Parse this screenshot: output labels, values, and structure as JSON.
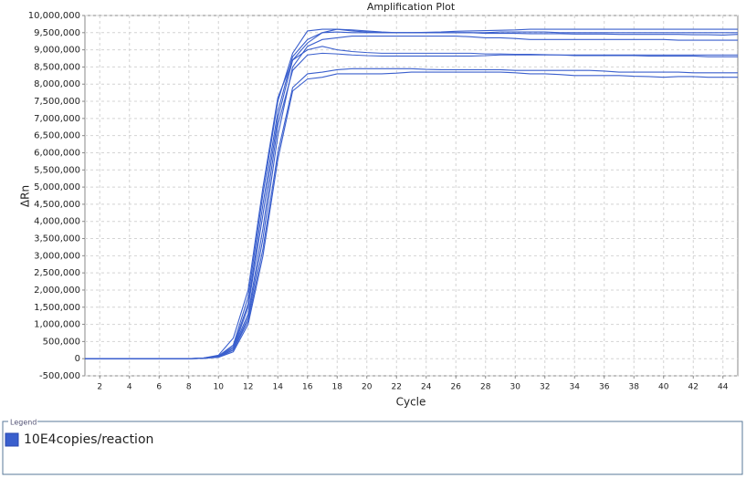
{
  "chart_data": {
    "type": "line",
    "title": "Amplification Plot",
    "x_label": "Cycle",
    "y_label": "ΔRn",
    "legend_title": "Legend",
    "legend": "10E4copies/reaction",
    "color": "#3a5fcd",
    "grid": true,
    "x": [
      1,
      2,
      3,
      4,
      5,
      6,
      7,
      8,
      9,
      10,
      11,
      12,
      13,
      14,
      15,
      16,
      17,
      18,
      19,
      20,
      21,
      22,
      23,
      24,
      25,
      26,
      27,
      28,
      29,
      30,
      31,
      32,
      33,
      34,
      35,
      36,
      37,
      38,
      39,
      40,
      41,
      42,
      43,
      44,
      45
    ],
    "xlim": [
      1,
      45
    ],
    "xticks": [
      2,
      4,
      6,
      8,
      10,
      12,
      14,
      16,
      18,
      20,
      22,
      24,
      26,
      28,
      30,
      32,
      34,
      36,
      38,
      40,
      42,
      44
    ],
    "ylim": [
      -500000,
      10000000
    ],
    "yticks": [
      {
        "value": -500000,
        "label": "-500,000"
      },
      0,
      {
        "value": 500000,
        "label": "500,000"
      },
      {
        "value": 1000000,
        "label": "1,000,000"
      },
      {
        "value": 1500000,
        "label": "1,500,000"
      },
      {
        "value": 2000000,
        "label": "2,000,000"
      },
      {
        "value": 2500000,
        "label": "2,500,000"
      },
      {
        "value": 3000000,
        "label": "3,000,000"
      },
      {
        "value": 3500000,
        "label": "3,500,000"
      },
      {
        "value": 4000000,
        "label": "4,000,000"
      },
      {
        "value": 4500000,
        "label": "4,500,000"
      },
      {
        "value": 5000000,
        "label": "5,000,000"
      },
      {
        "value": 5500000,
        "label": "5,500,000"
      },
      {
        "value": 6000000,
        "label": "6,000,000"
      },
      {
        "value": 6500000,
        "label": "6,500,000"
      },
      {
        "value": 7000000,
        "label": "7,000,000"
      },
      {
        "value": 7500000,
        "label": "7,500,000"
      },
      {
        "value": 8000000,
        "label": "8,000,000"
      },
      {
        "value": 8500000,
        "label": "8,500,000"
      },
      {
        "value": 9000000,
        "label": "9,000,000"
      },
      {
        "value": 9500000,
        "label": "9,500,000"
      },
      {
        "value": 10000000,
        "label": "10,000,000"
      }
    ],
    "series": [
      {
        "values": [
          0,
          0,
          0,
          0,
          0,
          0,
          0,
          0,
          20000,
          80000,
          400000,
          1800000,
          4800000,
          7500000,
          8900000,
          9550000,
          9600000,
          9600000,
          9580000,
          9550000,
          9520000,
          9500000,
          9500000,
          9510000,
          9520000,
          9540000,
          9550000,
          9560000,
          9570000,
          9580000,
          9600000,
          9600000,
          9600000,
          9600000,
          9600000,
          9600000,
          9600000,
          9600000,
          9600000,
          9600000,
          9600000,
          9600000,
          9600000,
          9600000,
          9600000
        ]
      },
      {
        "values": [
          0,
          0,
          0,
          0,
          0,
          0,
          0,
          0,
          10000,
          60000,
          300000,
          1500000,
          4200000,
          7000000,
          8700000,
          9200000,
          9500000,
          9600000,
          9550000,
          9520000,
          9500000,
          9500000,
          9500000,
          9500000,
          9500000,
          9500000,
          9500000,
          9480000,
          9480000,
          9480000,
          9470000,
          9470000,
          9470000,
          9460000,
          9460000,
          9460000,
          9450000,
          9450000,
          9450000,
          9450000,
          9450000,
          9440000,
          9440000,
          9430000,
          9450000
        ]
      },
      {
        "values": [
          0,
          0,
          0,
          0,
          0,
          0,
          0,
          0,
          10000,
          50000,
          250000,
          1200000,
          3500000,
          6500000,
          8500000,
          9100000,
          9300000,
          9350000,
          9400000,
          9400000,
          9400000,
          9400000,
          9400000,
          9400000,
          9400000,
          9400000,
          9380000,
          9350000,
          9350000,
          9330000,
          9300000,
          9300000,
          9300000,
          9300000,
          9300000,
          9300000,
          9300000,
          9300000,
          9300000,
          9300000,
          9280000,
          9280000,
          9280000,
          9280000,
          9280000
        ]
      },
      {
        "values": [
          0,
          0,
          0,
          0,
          0,
          0,
          0,
          0,
          15000,
          70000,
          350000,
          1600000,
          4500000,
          7200000,
          8800000,
          9300000,
          9500000,
          9520000,
          9500000,
          9500000,
          9500000,
          9500000,
          9500000,
          9500000,
          9500000,
          9500000,
          9500000,
          9500000,
          9520000,
          9520000,
          9520000,
          9520000,
          9500000,
          9500000,
          9500000,
          9500000,
          9500000,
          9500000,
          9500000,
          9500000,
          9500000,
          9500000,
          9500000,
          9500000,
          9500000
        ]
      },
      {
        "values": [
          0,
          0,
          0,
          0,
          0,
          0,
          0,
          0,
          20000,
          100000,
          600000,
          2000000,
          5000000,
          7600000,
          8700000,
          9000000,
          9100000,
          9000000,
          8950000,
          8920000,
          8900000,
          8900000,
          8900000,
          8900000,
          8900000,
          8900000,
          8900000,
          8880000,
          8880000,
          8870000,
          8870000,
          8860000,
          8850000,
          8850000,
          8850000,
          8850000,
          8850000,
          8850000,
          8850000,
          8850000,
          8850000,
          8850000,
          8850000,
          8850000,
          8850000
        ]
      },
      {
        "values": [
          0,
          0,
          0,
          0,
          0,
          0,
          0,
          0,
          10000,
          60000,
          300000,
          1300000,
          3800000,
          6800000,
          8400000,
          8850000,
          8900000,
          8880000,
          8850000,
          8830000,
          8820000,
          8820000,
          8820000,
          8820000,
          8820000,
          8820000,
          8820000,
          8830000,
          8850000,
          8850000,
          8850000,
          8850000,
          8850000,
          8830000,
          8830000,
          8830000,
          8830000,
          8830000,
          8820000,
          8820000,
          8820000,
          8820000,
          8800000,
          8800000,
          8800000
        ]
      },
      {
        "values": [
          0,
          0,
          0,
          0,
          0,
          0,
          0,
          0,
          15000,
          50000,
          250000,
          1100000,
          3200000,
          6000000,
          7900000,
          8300000,
          8350000,
          8420000,
          8450000,
          8450000,
          8450000,
          8450000,
          8450000,
          8430000,
          8420000,
          8420000,
          8420000,
          8420000,
          8420000,
          8400000,
          8400000,
          8400000,
          8400000,
          8400000,
          8400000,
          8380000,
          8350000,
          8350000,
          8350000,
          8350000,
          8350000,
          8330000,
          8330000,
          8330000,
          8330000
        ]
      },
      {
        "values": [
          0,
          0,
          0,
          0,
          0,
          0,
          0,
          0,
          10000,
          40000,
          200000,
          1000000,
          3000000,
          5800000,
          7800000,
          8150000,
          8200000,
          8300000,
          8300000,
          8300000,
          8300000,
          8320000,
          8350000,
          8350000,
          8350000,
          8350000,
          8350000,
          8350000,
          8350000,
          8330000,
          8300000,
          8300000,
          8280000,
          8250000,
          8250000,
          8250000,
          8250000,
          8230000,
          8220000,
          8200000,
          8220000,
          8220000,
          8200000,
          8200000,
          8200000
        ]
      }
    ]
  }
}
